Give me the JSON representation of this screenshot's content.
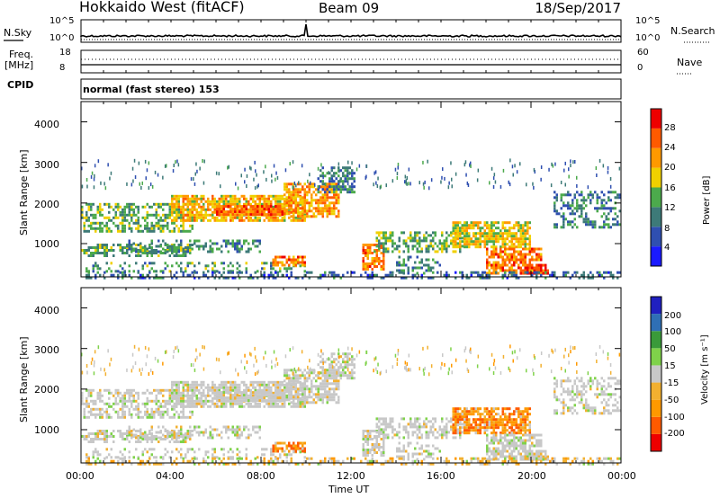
{
  "header": {
    "station": "Hokkaido West (fitACF)",
    "beam": "Beam 09",
    "date": "18/Sep/2017"
  },
  "top_panels": {
    "nsky_label": "N.Sky",
    "nsky_ticks": [
      "10^5",
      "10^0"
    ],
    "nsearch_label": "N.Search",
    "nsearch_ticks": [
      "10^5",
      "10^0"
    ],
    "freq_label_1": "Freq.",
    "freq_label_2": "[MHz]",
    "freq_ticks": [
      "18",
      "8"
    ],
    "nave_label": "Nave",
    "nave_ticks": [
      "60",
      "0"
    ],
    "cpid_label": "CPID",
    "cpid_text": "normal (fast stereo) 153"
  },
  "colors": {
    "power_scale": [
      "#1a1aff",
      "#2f4fb0",
      "#3d7a78",
      "#4caa4c",
      "#f0d000",
      "#ff9900",
      "#ff5a00",
      "#ee0000"
    ],
    "velocity_scale": [
      "#ee0000",
      "#ff5a00",
      "#ff9900",
      "#f2b030",
      "#c8c8c8",
      "#7fd24a",
      "#3a9a3a",
      "#2f6fb5",
      "#2020c0"
    ]
  },
  "chart_data": [
    {
      "type": "heatmap",
      "name": "power",
      "xlabel": "Time UT",
      "ylabel": "Slant Range [km]",
      "x_ticks": [
        "00:00",
        "04:00",
        "08:00",
        "12:00",
        "16:00",
        "20:00",
        "00:00"
      ],
      "y_ticks": [
        4000,
        3000,
        2000,
        1000
      ],
      "xlim": [
        0,
        24
      ],
      "ylim": [
        180,
        4500
      ],
      "colorbar_label": "Power [dB]",
      "colorbar_ticks": [
        28,
        24,
        20,
        16,
        12,
        8,
        4
      ],
      "colorbar_range": [
        0,
        32
      ]
    },
    {
      "type": "heatmap",
      "name": "velocity",
      "xlabel": "Time UT",
      "ylabel": "Slant Range [km]",
      "x_ticks": [
        "00:00",
        "04:00",
        "08:00",
        "12:00",
        "16:00",
        "20:00",
        "00:00"
      ],
      "y_ticks": [
        4000,
        3000,
        2000,
        1000
      ],
      "xlim": [
        0,
        24
      ],
      "ylim": [
        180,
        4500
      ],
      "colorbar_label": "Velocity [m s⁻¹]",
      "colorbar_ticks": [
        200,
        100,
        50,
        15,
        -15,
        -50,
        -100,
        -200
      ]
    }
  ]
}
